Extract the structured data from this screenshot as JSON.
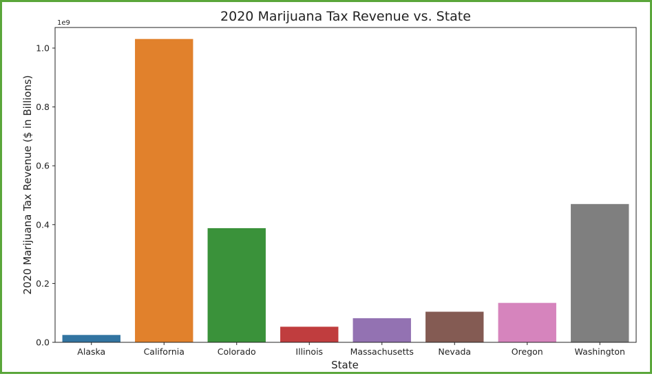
{
  "chart_data": {
    "type": "bar",
    "title": "2020 Marijuana Tax Revenue vs. State",
    "xlabel": "State",
    "ylabel": "2020 Marijuana Tax Revenue ($ in Billions)",
    "y_offset_label": "1e9",
    "ylim": [
      0,
      1.07
    ],
    "yticks": [
      0.0,
      0.2,
      0.4,
      0.6,
      0.8,
      1.0
    ],
    "ytick_labels": [
      "0.0",
      "0.2",
      "0.4",
      "0.6",
      "0.8",
      "1.0"
    ],
    "categories": [
      "Alaska",
      "California",
      "Colorado",
      "Illinois",
      "Massachusetts",
      "Nevada",
      "Oregon",
      "Washington"
    ],
    "values": [
      0.025,
      1.031,
      0.388,
      0.053,
      0.082,
      0.104,
      0.134,
      0.47
    ],
    "colors": [
      "#3274a1",
      "#e1812c",
      "#3a923a",
      "#c03d3e",
      "#9372b2",
      "#845b53",
      "#d684bd",
      "#7f7f7f"
    ],
    "grid": false,
    "legend": "none"
  }
}
